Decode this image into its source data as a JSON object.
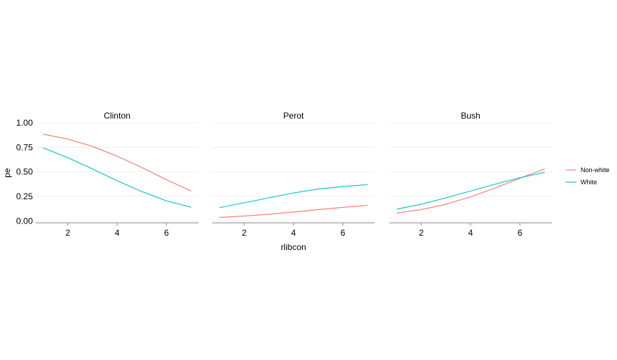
{
  "chart_data": {
    "type": "line",
    "facet_type": "small-multiples",
    "xlabel": "rlibcon",
    "ylabel": "pe",
    "xlim": [
      0.7,
      7.3
    ],
    "ylim": [
      -0.02,
      1.0
    ],
    "xticks": [
      2,
      4,
      6
    ],
    "yticks": [
      0.0,
      0.25,
      0.5,
      0.75,
      1.0
    ],
    "ytick_labels": [
      "0.00",
      "0.25",
      "0.50",
      "0.75",
      "1.00"
    ],
    "grid": "horizontal",
    "legend_position": "right",
    "colors": {
      "Non-white": "#F8766D",
      "White": "#00BFC4"
    },
    "legend": [
      "Non-white",
      "White"
    ],
    "x": [
      1,
      2,
      3,
      4,
      5,
      6,
      7
    ],
    "panels": [
      {
        "title": "Clinton",
        "series": [
          {
            "name": "Non-white",
            "values": [
              0.885,
              0.835,
              0.76,
              0.66,
              0.545,
              0.42,
              0.305
            ]
          },
          {
            "name": "White",
            "values": [
              0.745,
              0.645,
              0.53,
              0.41,
              0.3,
              0.205,
              0.14
            ]
          }
        ]
      },
      {
        "title": "Perot",
        "series": [
          {
            "name": "Non-white",
            "values": [
              0.035,
              0.05,
              0.068,
              0.09,
              0.115,
              0.138,
              0.158
            ]
          },
          {
            "name": "White",
            "values": [
              0.135,
              0.185,
              0.235,
              0.285,
              0.325,
              0.35,
              0.37
            ]
          }
        ]
      },
      {
        "title": "Bush",
        "series": [
          {
            "name": "Non-white",
            "values": [
              0.08,
              0.115,
              0.17,
              0.245,
              0.335,
              0.435,
              0.53
            ]
          },
          {
            "name": "White",
            "values": [
              0.12,
              0.17,
              0.235,
              0.305,
              0.375,
              0.44,
              0.495
            ]
          }
        ]
      }
    ]
  }
}
